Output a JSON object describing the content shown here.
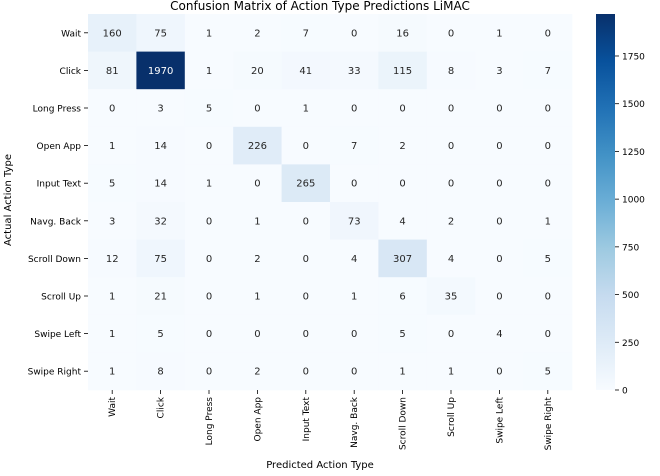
{
  "chart_data": {
    "type": "heatmap",
    "title": "Confusion Matrix of Action Type Predictions LiMAC",
    "xlabel": "Predicted Action Type",
    "ylabel": "Actual Action Type",
    "x_categories": [
      "Wait",
      "Click",
      "Long Press",
      "Open App",
      "Input Text",
      "Navg. Back",
      "Scroll Down",
      "Scroll Up",
      "Swipe Left",
      "Swipe Right"
    ],
    "y_categories": [
      "Wait",
      "Click",
      "Long Press",
      "Open App",
      "Input Text",
      "Navg. Back",
      "Scroll Down",
      "Scroll Up",
      "Swipe Left",
      "Swipe Right"
    ],
    "values": [
      [
        160,
        75,
        1,
        2,
        7,
        0,
        16,
        0,
        1,
        0
      ],
      [
        81,
        1970,
        1,
        20,
        41,
        33,
        115,
        8,
        3,
        7
      ],
      [
        0,
        3,
        5,
        0,
        1,
        0,
        0,
        0,
        0,
        0
      ],
      [
        1,
        14,
        0,
        226,
        0,
        7,
        2,
        0,
        0,
        0
      ],
      [
        5,
        14,
        1,
        0,
        265,
        0,
        0,
        0,
        0,
        0
      ],
      [
        3,
        32,
        0,
        1,
        0,
        73,
        4,
        2,
        0,
        1
      ],
      [
        12,
        75,
        0,
        2,
        0,
        4,
        307,
        4,
        0,
        5
      ],
      [
        1,
        21,
        0,
        1,
        0,
        1,
        6,
        35,
        0,
        0
      ],
      [
        1,
        5,
        0,
        0,
        0,
        0,
        5,
        0,
        4,
        0
      ],
      [
        1,
        8,
        0,
        2,
        0,
        0,
        1,
        1,
        0,
        5
      ]
    ],
    "colormap": "Blues",
    "color_low": "#f7fbff",
    "color_high": "#08306b",
    "vmin": 0,
    "vmax": 1970,
    "colorbar_ticks": [
      0,
      250,
      500,
      750,
      1000,
      1250,
      1500,
      1750
    ]
  }
}
